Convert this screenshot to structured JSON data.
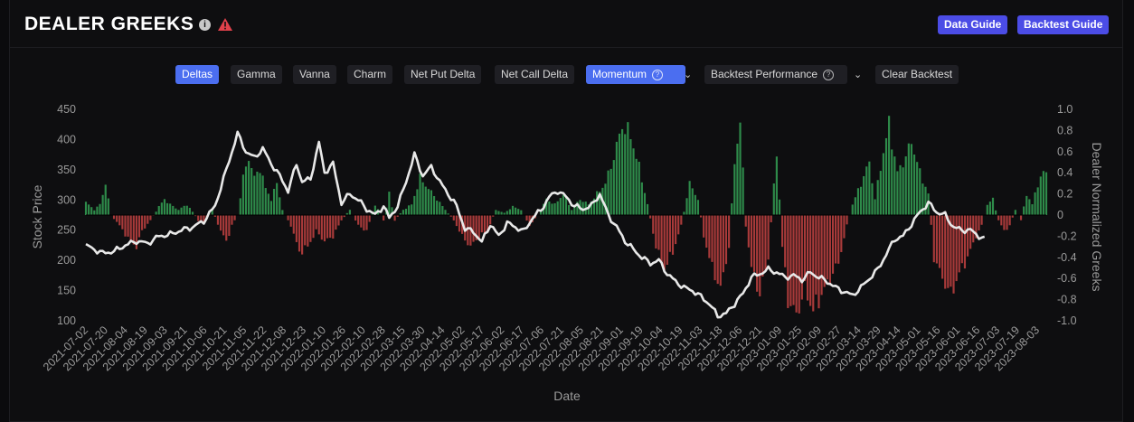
{
  "header": {
    "title": "DEALER GREEKS",
    "data_guide": "Data Guide",
    "backtest_guide": "Backtest Guide"
  },
  "toolbar": {
    "deltas": "Deltas",
    "gamma": "Gamma",
    "vanna": "Vanna",
    "charm": "Charm",
    "net_put_delta": "Net Put Delta",
    "net_call_delta": "Net Call Delta",
    "momentum": "Momentum",
    "backtest_performance": "Backtest Performance",
    "clear_backtest": "Clear Backtest"
  },
  "colors": {
    "accent": "#4b4ce6",
    "active": "#4b6ef0",
    "positive_bar": "#2e8b4a",
    "negative_bar": "#a83a3a",
    "price_line": "#e8e8e8",
    "warning": "#e0414b"
  },
  "chart_data": {
    "type": "bar+line",
    "xlabel": "Date",
    "ylabel_left": "Stock Price",
    "ylabel_right": "Dealer Normalized Greeks",
    "ylim_left": [
      100,
      450
    ],
    "ylim_right": [
      -1.0,
      1.0
    ],
    "yticks_left": [
      "100",
      "150",
      "200",
      "250",
      "300",
      "350",
      "400",
      "450"
    ],
    "yticks_right": [
      "-1.0",
      "-0.8",
      "-0.6",
      "-0.4",
      "-0.2",
      "0",
      "0.2",
      "0.4",
      "0.6",
      "0.8",
      "1.0"
    ],
    "x_tick_labels": [
      "2021-07-02",
      "2021-07-20",
      "2021-08-04",
      "2021-08-19",
      "2021-09-03",
      "2021-09-21",
      "2021-10-06",
      "2021-10-21",
      "2021-11-05",
      "2021-11-22",
      "2021-12-08",
      "2021-12-23",
      "2022-01-10",
      "2022-01-26",
      "2022-02-10",
      "2022-02-28",
      "2022-03-15",
      "2022-03-30",
      "2022-04-14",
      "2022-05-02",
      "2022-05-17",
      "2022-06-02",
      "2022-06-17",
      "2022-07-06",
      "2022-07-21",
      "2022-08-05",
      "2022-08-21",
      "2022-09-01",
      "2022-09-19",
      "2022-10-04",
      "2022-10-19",
      "2022-11-03",
      "2022-11-18",
      "2022-12-06",
      "2022-12-21",
      "2023-01-09",
      "2023-01-25",
      "2023-02-09",
      "2023-02-27",
      "2023-03-14",
      "2023-03-29",
      "2023-04-14",
      "2023-05-01",
      "2023-05-16",
      "2023-06-01",
      "2023-06-16",
      "2023-07-03",
      "2023-07-19",
      "2023-08-03"
    ],
    "price_series": {
      "anchors": [
        [
          0,
          225
        ],
        [
          3,
          218
        ],
        [
          6,
          212
        ],
        [
          10,
          215
        ],
        [
          14,
          225
        ],
        [
          18,
          232
        ],
        [
          22,
          228
        ],
        [
          26,
          240
        ],
        [
          30,
          243
        ],
        [
          34,
          250
        ],
        [
          38,
          255
        ],
        [
          42,
          265
        ],
        [
          46,
          290
        ],
        [
          50,
          350
        ],
        [
          54,
          410
        ],
        [
          57,
          380
        ],
        [
          60,
          370
        ],
        [
          63,
          385
        ],
        [
          66,
          360
        ],
        [
          69,
          340
        ],
        [
          72,
          315
        ],
        [
          75,
          360
        ],
        [
          77,
          330
        ],
        [
          80,
          335
        ],
        [
          83,
          395
        ],
        [
          85,
          345
        ],
        [
          88,
          360
        ],
        [
          91,
          295
        ],
        [
          94,
          310
        ],
        [
          97,
          300
        ],
        [
          100,
          285
        ],
        [
          103,
          275
        ],
        [
          106,
          290
        ],
        [
          108,
          270
        ],
        [
          111,
          290
        ],
        [
          114,
          330
        ],
        [
          117,
          375
        ],
        [
          120,
          340
        ],
        [
          123,
          355
        ],
        [
          126,
          330
        ],
        [
          129,
          310
        ],
        [
          132,
          290
        ],
        [
          135,
          252
        ],
        [
          138,
          248
        ],
        [
          141,
          230
        ],
        [
          144,
          260
        ],
        [
          147,
          240
        ],
        [
          150,
          262
        ],
        [
          153,
          255
        ],
        [
          156,
          248
        ],
        [
          159,
          270
        ],
        [
          162,
          283
        ],
        [
          165,
          305
        ],
        [
          168,
          315
        ],
        [
          171,
          305
        ],
        [
          174,
          290
        ],
        [
          177,
          285
        ],
        [
          180,
          290
        ],
        [
          183,
          310
        ],
        [
          186,
          275
        ],
        [
          189,
          255
        ],
        [
          192,
          232
        ],
        [
          195,
          218
        ],
        [
          198,
          205
        ],
        [
          201,
          195
        ],
        [
          204,
          200
        ],
        [
          207,
          178
        ],
        [
          210,
          165
        ],
        [
          213,
          155
        ],
        [
          216,
          150
        ],
        [
          219,
          140
        ],
        [
          222,
          128
        ],
        [
          225,
          108
        ],
        [
          228,
          112
        ],
        [
          231,
          128
        ],
        [
          234,
          145
        ],
        [
          237,
          172
        ],
        [
          240,
          178
        ],
        [
          243,
          185
        ],
        [
          246,
          180
        ],
        [
          249,
          172
        ],
        [
          252,
          175
        ],
        [
          255,
          168
        ],
        [
          258,
          180
        ],
        [
          261,
          172
        ],
        [
          264,
          165
        ],
        [
          267,
          155
        ],
        [
          270,
          148
        ],
        [
          273,
          142
        ],
        [
          276,
          155
        ],
        [
          279,
          170
        ],
        [
          282,
          185
        ],
        [
          285,
          210
        ],
        [
          288,
          235
        ],
        [
          291,
          240
        ],
        [
          294,
          260
        ],
        [
          297,
          280
        ],
        [
          300,
          295
        ],
        [
          303,
          280
        ],
        [
          306,
          275
        ],
        [
          309,
          255
        ],
        [
          312,
          250
        ],
        [
          315,
          250
        ],
        [
          318,
          240
        ],
        [
          320,
          235
        ]
      ]
    },
    "greek_bars": {
      "anchors": [
        [
          0,
          0.12
        ],
        [
          3,
          0.05
        ],
        [
          5,
          0.1
        ],
        [
          7,
          0.3
        ],
        [
          9,
          0.0
        ],
        [
          12,
          -0.1
        ],
        [
          15,
          -0.22
        ],
        [
          18,
          -0.3
        ],
        [
          20,
          -0.15
        ],
        [
          23,
          -0.05
        ],
        [
          26,
          0.08
        ],
        [
          28,
          0.15
        ],
        [
          30,
          0.1
        ],
        [
          33,
          0.05
        ],
        [
          36,
          0.1
        ],
        [
          38,
          0.03
        ],
        [
          40,
          -0.05
        ],
        [
          42,
          -0.08
        ],
        [
          45,
          0.05
        ],
        [
          48,
          -0.15
        ],
        [
          50,
          -0.25
        ],
        [
          52,
          -0.1
        ],
        [
          54,
          0.0
        ],
        [
          56,
          0.35
        ],
        [
          58,
          0.55
        ],
        [
          60,
          0.35
        ],
        [
          62,
          0.45
        ],
        [
          64,
          0.25
        ],
        [
          66,
          0.15
        ],
        [
          68,
          0.3
        ],
        [
          70,
          0.05
        ],
        [
          73,
          -0.1
        ],
        [
          76,
          -0.35
        ],
        [
          79,
          -0.3
        ],
        [
          82,
          -0.15
        ],
        [
          85,
          -0.25
        ],
        [
          88,
          -0.2
        ],
        [
          91,
          -0.05
        ],
        [
          94,
          0.05
        ],
        [
          97,
          -0.1
        ],
        [
          100,
          -0.15
        ],
        [
          103,
          0.1
        ],
        [
          106,
          -0.05
        ],
        [
          108,
          0.2
        ],
        [
          110,
          -0.05
        ],
        [
          113,
          0.05
        ],
        [
          116,
          0.1
        ],
        [
          119,
          0.35
        ],
        [
          122,
          0.25
        ],
        [
          125,
          0.15
        ],
        [
          128,
          0.05
        ],
        [
          131,
          -0.05
        ],
        [
          134,
          -0.2
        ],
        [
          137,
          -0.3
        ],
        [
          140,
          -0.2
        ],
        [
          143,
          -0.15
        ],
        [
          146,
          0.05
        ],
        [
          149,
          0.02
        ],
        [
          152,
          0.08
        ],
        [
          155,
          0.05
        ],
        [
          158,
          -0.1
        ],
        [
          161,
          0.0
        ],
        [
          164,
          0.15
        ],
        [
          167,
          0.1
        ],
        [
          170,
          0.2
        ],
        [
          173,
          0.05
        ],
        [
          176,
          0.15
        ],
        [
          179,
          0.1
        ],
        [
          182,
          0.2
        ],
        [
          185,
          0.3
        ],
        [
          188,
          0.55
        ],
        [
          191,
          0.85
        ],
        [
          194,
          0.75
        ],
        [
          197,
          0.45
        ],
        [
          200,
          0.1
        ],
        [
          203,
          -0.3
        ],
        [
          206,
          -0.5
        ],
        [
          209,
          -0.35
        ],
        [
          212,
          -0.1
        ],
        [
          215,
          0.3
        ],
        [
          218,
          0.15
        ],
        [
          220,
          -0.2
        ],
        [
          223,
          -0.5
        ],
        [
          226,
          -0.7
        ],
        [
          229,
          -0.3
        ],
        [
          231,
          0.5
        ],
        [
          233,
          0.9
        ],
        [
          235,
          -0.1
        ],
        [
          237,
          -0.5
        ],
        [
          240,
          -0.75
        ],
        [
          243,
          -0.4
        ],
        [
          246,
          0.6
        ],
        [
          248,
          -0.3
        ],
        [
          250,
          -0.8
        ],
        [
          253,
          -0.95
        ],
        [
          256,
          -0.7
        ],
        [
          259,
          -0.9
        ],
        [
          262,
          -0.75
        ],
        [
          265,
          -0.6
        ],
        [
          268,
          -0.45
        ],
        [
          271,
          -0.1
        ],
        [
          273,
          0.1
        ],
        [
          276,
          0.3
        ],
        [
          279,
          0.5
        ],
        [
          281,
          0.15
        ],
        [
          284,
          0.6
        ],
        [
          286,
          0.85
        ],
        [
          289,
          0.4
        ],
        [
          292,
          0.55
        ],
        [
          294,
          0.7
        ],
        [
          297,
          0.4
        ],
        [
          300,
          0.2
        ],
        [
          302,
          -0.4
        ],
        [
          305,
          -0.6
        ],
        [
          308,
          -0.75
        ],
        [
          311,
          -0.55
        ],
        [
          314,
          -0.4
        ],
        [
          317,
          -0.2
        ],
        [
          319,
          -0.1
        ],
        [
          321,
          0.1
        ],
        [
          323,
          0.15
        ],
        [
          325,
          -0.05
        ],
        [
          327,
          -0.15
        ],
        [
          329,
          -0.1
        ],
        [
          331,
          0.05
        ],
        [
          333,
          -0.05
        ],
        [
          335,
          0.2
        ],
        [
          337,
          0.1
        ],
        [
          339,
          0.3
        ],
        [
          341,
          0.4
        ]
      ]
    }
  }
}
